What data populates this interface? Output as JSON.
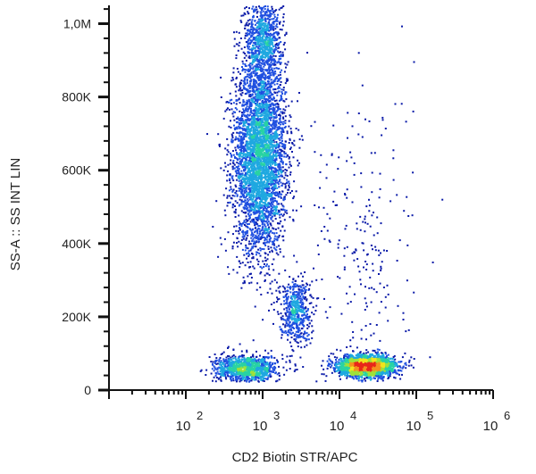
{
  "chart_data": {
    "type": "scatter",
    "style": "flow cytometry density dot plot",
    "xlabel": "CD2 Biotin STR/APC",
    "ylabel": "SS-A :: SS INT LIN",
    "x_scale": "log",
    "xlim": [
      10,
      1000000
    ],
    "x_ticks": [
      {
        "value": 100,
        "base": "10",
        "exp": "2"
      },
      {
        "value": 1000,
        "base": "10",
        "exp": "3"
      },
      {
        "value": 10000,
        "base": "10",
        "exp": "4"
      },
      {
        "value": 100000,
        "base": "10",
        "exp": "5"
      },
      {
        "value": 1000000,
        "base": "10",
        "exp": "6"
      }
    ],
    "y_scale": "linear",
    "ylim": [
      0,
      1050000
    ],
    "y_ticks": [
      {
        "value": 0,
        "label": "0"
      },
      {
        "value": 200000,
        "label": "200K"
      },
      {
        "value": 400000,
        "label": "400K"
      },
      {
        "value": 600000,
        "label": "600K"
      },
      {
        "value": 800000,
        "label": "800K"
      },
      {
        "value": 1000000,
        "label": "1,0M"
      }
    ],
    "grid": false,
    "legend": "none",
    "colormap": [
      "#0a1aa8",
      "#1f4fe0",
      "#1fa8e0",
      "#29d3a3",
      "#9fe13a",
      "#f2e41d",
      "#f5901e",
      "#e8261a"
    ],
    "populations": [
      {
        "x_center": 900,
        "x_spread_decades": 0.17,
        "y_center": 640000,
        "y_spread": 130000,
        "events": 4200
      },
      {
        "x_center": 1000,
        "x_spread_decades": 0.12,
        "y_center": 960000,
        "y_spread": 60000,
        "events": 900
      },
      {
        "x_center": 2600,
        "x_spread_decades": 0.1,
        "y_center": 220000,
        "y_spread": 45000,
        "events": 550
      },
      {
        "x_center": 600,
        "x_spread_decades": 0.2,
        "y_center": 60000,
        "y_spread": 18000,
        "events": 1100
      },
      {
        "x_center": 22000,
        "x_spread_decades": 0.18,
        "y_center": 68000,
        "y_spread": 14000,
        "events": 2600
      },
      {
        "x_center": 20000,
        "x_spread_decades": 0.35,
        "y_center": 350000,
        "y_spread": 250000,
        "events": 260
      }
    ]
  }
}
